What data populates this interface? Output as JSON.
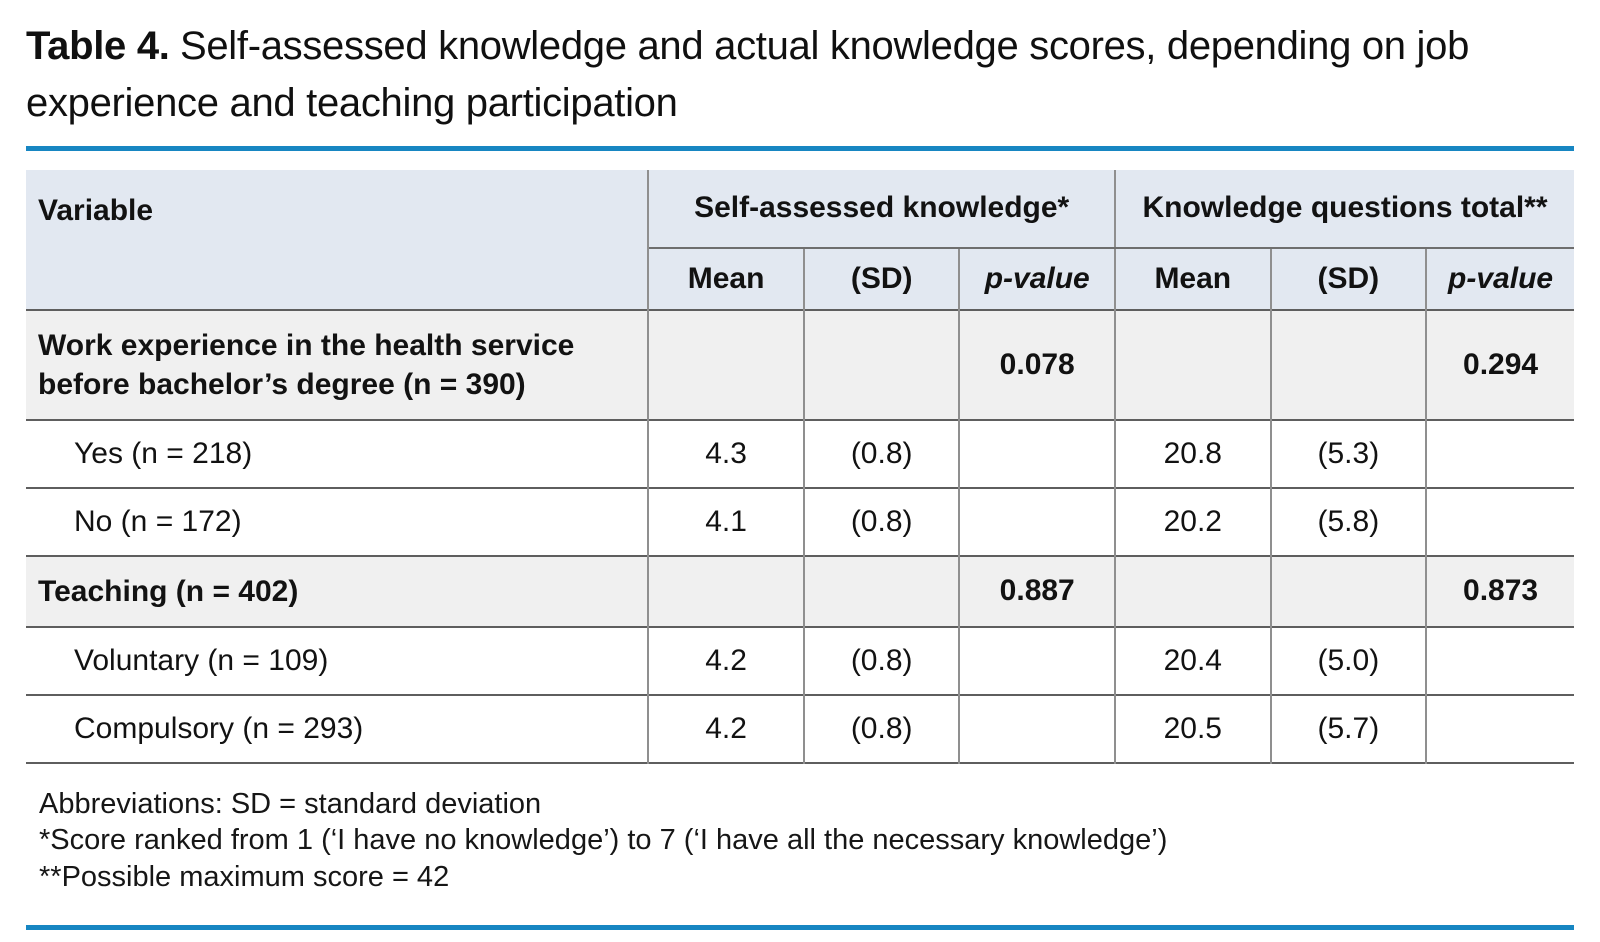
{
  "caption": {
    "label": "Table 4.",
    "text": "Self-assessed knowledge and actual knowledge scores, depending on job experience and teaching participation"
  },
  "table": {
    "variable_header": "Variable",
    "groups": [
      {
        "label": "Self-assessed knowledge*",
        "sub": [
          "Mean",
          "(SD)",
          "p-value"
        ]
      },
      {
        "label": "Knowledge questions total**",
        "sub": [
          "Mean",
          "(SD)",
          "p-value"
        ]
      }
    ],
    "rows": [
      {
        "type": "section",
        "label": "Work experience in the health service before bachelor’s degree (n = 390)",
        "cells": [
          "",
          "",
          "0.078",
          "",
          "",
          "0.294"
        ]
      },
      {
        "type": "item",
        "label": "Yes (n = 218)",
        "cells": [
          "4.3",
          "(0.8)",
          "",
          "20.8",
          "(5.3)",
          ""
        ]
      },
      {
        "type": "item",
        "label": "No (n = 172)",
        "cells": [
          "4.1",
          "(0.8)",
          "",
          "20.2",
          "(5.8)",
          ""
        ]
      },
      {
        "type": "section",
        "label": "Teaching (n = 402)",
        "cells": [
          "",
          "",
          "0.887",
          "",
          "",
          "0.873"
        ]
      },
      {
        "type": "item",
        "label": "Voluntary (n = 109)",
        "cells": [
          "4.2",
          "(0.8)",
          "",
          "20.4",
          "(5.0)",
          ""
        ]
      },
      {
        "type": "item",
        "label": "Compulsory (n = 293)",
        "cells": [
          "4.2",
          "(0.8)",
          "",
          "20.5",
          "(5.7)",
          ""
        ]
      }
    ]
  },
  "notes": [
    "Abbreviations: SD = standard deviation",
    "*Score ranked from 1 (‘I have no knowledge’) to 7 (‘I have all the necessary knowledge’)",
    "**Possible maximum score = 42"
  ],
  "colors": {
    "accent_blue": "#1786c2",
    "header_bg": "#e2e8f1",
    "section_row_bg": "#f0f0f0"
  }
}
